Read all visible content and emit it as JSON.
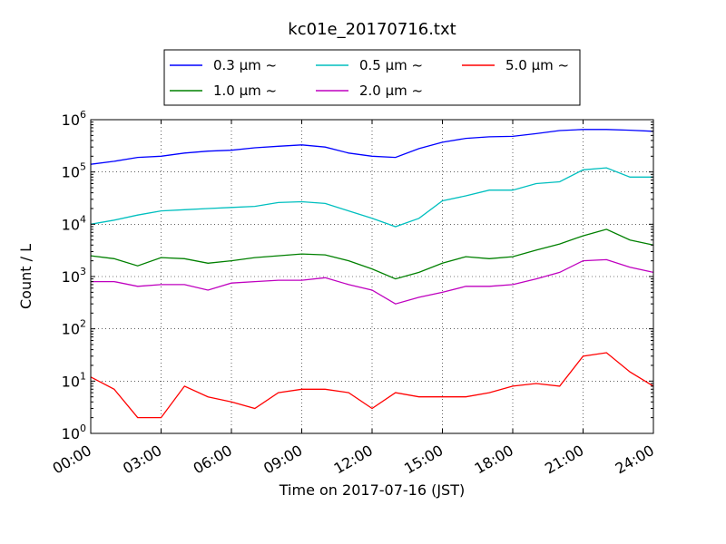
{
  "chart_data": {
    "type": "line",
    "title": "kc01e_20170716.txt",
    "xlabel": "Time on 2017-07-16 (JST)",
    "ylabel": "Count / L",
    "yscale": "log",
    "xlim": [
      "00:00",
      "24:00"
    ],
    "ylim": [
      1,
      1000000
    ],
    "xticks": [
      "00:00",
      "03:00",
      "06:00",
      "09:00",
      "12:00",
      "15:00",
      "18:00",
      "21:00",
      "24:00"
    ],
    "yticks": [
      {
        "base": "10",
        "exp": "0"
      },
      {
        "base": "10",
        "exp": "1"
      },
      {
        "base": "10",
        "exp": "2"
      },
      {
        "base": "10",
        "exp": "3"
      },
      {
        "base": "10",
        "exp": "4"
      },
      {
        "base": "10",
        "exp": "5"
      },
      {
        "base": "10",
        "exp": "6"
      }
    ],
    "grid": true,
    "legend_position": "top-center, above plot",
    "x_hours": [
      0.0,
      1.0,
      2.0,
      3.0,
      4.0,
      5.0,
      6.0,
      7.0,
      8.0,
      9.0,
      10.0,
      11.0,
      12.0,
      13.0,
      14.0,
      15.0,
      16.0,
      17.0,
      18.0,
      19.0,
      20.0,
      21.0,
      22.0,
      23.0,
      24.0
    ],
    "series": [
      {
        "name": "0.3 μm ~",
        "color": "#0000ff",
        "values": [
          140000,
          160000,
          190000,
          200000,
          230000,
          250000,
          260000,
          290000,
          310000,
          330000,
          300000,
          230000,
          200000,
          190000,
          280000,
          370000,
          440000,
          470000,
          480000,
          540000,
          620000,
          650000,
          650000,
          630000,
          600000
        ]
      },
      {
        "name": "0.5 μm ~",
        "color": "#00bfbf",
        "values": [
          10000,
          12000,
          15000,
          18000,
          19000,
          20000,
          21000,
          22000,
          26000,
          27000,
          25000,
          18000,
          13000,
          9000,
          13000,
          28000,
          35000,
          45000,
          45000,
          60000,
          65000,
          110000,
          120000,
          80000,
          80000
        ]
      },
      {
        "name": "1.0 μm ~",
        "color": "#008000",
        "values": [
          2500,
          2200,
          1600,
          2300,
          2200,
          1800,
          2000,
          2300,
          2500,
          2700,
          2600,
          2000,
          1400,
          900,
          1200,
          1800,
          2400,
          2200,
          2400,
          3200,
          4200,
          6000,
          8000,
          5000,
          4000
        ]
      },
      {
        "name": "2.0 μm ~",
        "color": "#bf00bf",
        "values": [
          800,
          800,
          650,
          700,
          700,
          550,
          750,
          800,
          850,
          850,
          950,
          700,
          550,
          300,
          400,
          500,
          650,
          650,
          700,
          900,
          1200,
          2000,
          2100,
          1500,
          1200
        ]
      },
      {
        "name": "5.0 μm ~",
        "color": "#ff0000",
        "values": [
          12,
          7,
          2,
          2,
          8,
          5,
          4,
          3,
          6,
          7,
          7,
          6,
          3,
          6,
          5,
          5,
          5,
          6,
          8,
          9,
          8,
          30,
          35,
          15,
          8
        ]
      }
    ]
  }
}
